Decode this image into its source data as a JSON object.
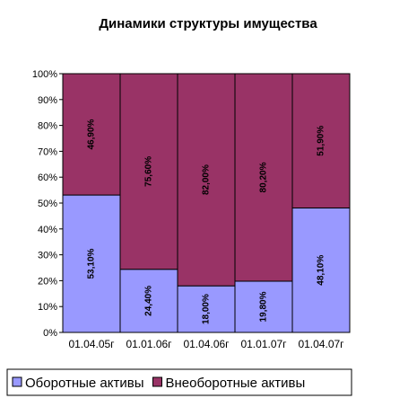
{
  "chart_data": {
    "type": "bar",
    "stacked": true,
    "title": "Динамики структуры имущества",
    "categories": [
      "01.04.05г",
      "01.01.06г",
      "01.04.06г",
      "01.01.07г",
      "01.04.07г"
    ],
    "series": [
      {
        "name": "Оборотные активы",
        "color": "#9999ff",
        "values": [
          53.1,
          24.4,
          18.0,
          19.8,
          48.1
        ],
        "value_labels": [
          "53,10%",
          "24,40%",
          "18,00%",
          "19,80%",
          "48,10%"
        ]
      },
      {
        "name": "Внеоборотные активы",
        "color": "#993366",
        "values": [
          46.9,
          75.6,
          82.0,
          80.2,
          51.9
        ],
        "value_labels": [
          "46,90%",
          "75,60%",
          "82,00%",
          "80,20%",
          "51,90%"
        ]
      }
    ],
    "ylim": [
      0,
      100
    ],
    "yticks": [
      {
        "value": 0,
        "label": "0%"
      },
      {
        "value": 10,
        "label": "10%"
      },
      {
        "value": 20,
        "label": "20%"
      },
      {
        "value": 30,
        "label": "30%"
      },
      {
        "value": 40,
        "label": "40%"
      },
      {
        "value": 50,
        "label": "50%"
      },
      {
        "value": 60,
        "label": "60%"
      },
      {
        "value": 70,
        "label": "70%"
      },
      {
        "value": 80,
        "label": "80%"
      },
      {
        "value": 90,
        "label": "90%"
      },
      {
        "value": 100,
        "label": "100%"
      }
    ],
    "legend": "bottom"
  }
}
